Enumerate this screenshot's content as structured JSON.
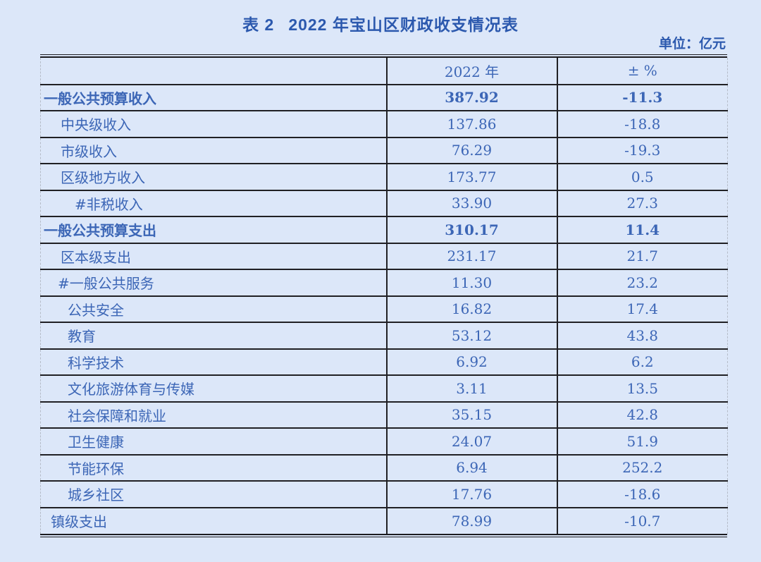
{
  "page": {
    "background": "#dce7f9",
    "text_color": "#3c66b6",
    "title_color": "#2c59ae",
    "line_color": "#1b1b1f"
  },
  "title": {
    "label": "表 2",
    "text": "2022 年宝山区财政收支情况表"
  },
  "unit_note": "单位：亿元",
  "table": {
    "columns": [
      "",
      "2022 年",
      "± %"
    ],
    "rows": [
      {
        "label": "一般公共预算收入",
        "value": "387.92",
        "pct": "-11.3",
        "bold": true,
        "indent": 4
      },
      {
        "label": "中央级收入",
        "value": "137.86",
        "pct": "-18.8",
        "bold": false,
        "indent": 28
      },
      {
        "label": "市级收入",
        "value": "76.29",
        "pct": "-19.3",
        "bold": false,
        "indent": 28
      },
      {
        "label": "区级地方收入",
        "value": "173.77",
        "pct": "0.5",
        "bold": false,
        "indent": 28
      },
      {
        "label": "#非税收入",
        "value": "33.90",
        "pct": "27.3",
        "bold": false,
        "indent": 48
      },
      {
        "label": "一般公共预算支出",
        "value": "310.17",
        "pct": "11.4",
        "bold": true,
        "indent": 4
      },
      {
        "label": "区本级支出",
        "value": "231.17",
        "pct": "21.7",
        "bold": false,
        "indent": 28
      },
      {
        "label": "#一般公共服务",
        "value": "11.30",
        "pct": "23.2",
        "bold": false,
        "indent": 24
      },
      {
        "label": "公共安全",
        "value": "16.82",
        "pct": "17.4",
        "bold": false,
        "indent": 38
      },
      {
        "label": "教育",
        "value": "53.12",
        "pct": "43.8",
        "bold": false,
        "indent": 38
      },
      {
        "label": "科学技术",
        "value": "6.92",
        "pct": "6.2",
        "bold": false,
        "indent": 38
      },
      {
        "label": "文化旅游体育与传媒",
        "value": "3.11",
        "pct": "13.5",
        "bold": false,
        "indent": 38
      },
      {
        "label": "社会保障和就业",
        "value": "35.15",
        "pct": "42.8",
        "bold": false,
        "indent": 38
      },
      {
        "label": "卫生健康",
        "value": "24.07",
        "pct": "51.9",
        "bold": false,
        "indent": 38
      },
      {
        "label": "节能环保",
        "value": "6.94",
        "pct": "252.2",
        "bold": false,
        "indent": 38
      },
      {
        "label": "城乡社区",
        "value": "17.76",
        "pct": "-18.6",
        "bold": false,
        "indent": 38
      },
      {
        "label": "镇级支出",
        "value": "78.99",
        "pct": "-10.7",
        "bold": false,
        "indent": 14
      }
    ]
  }
}
